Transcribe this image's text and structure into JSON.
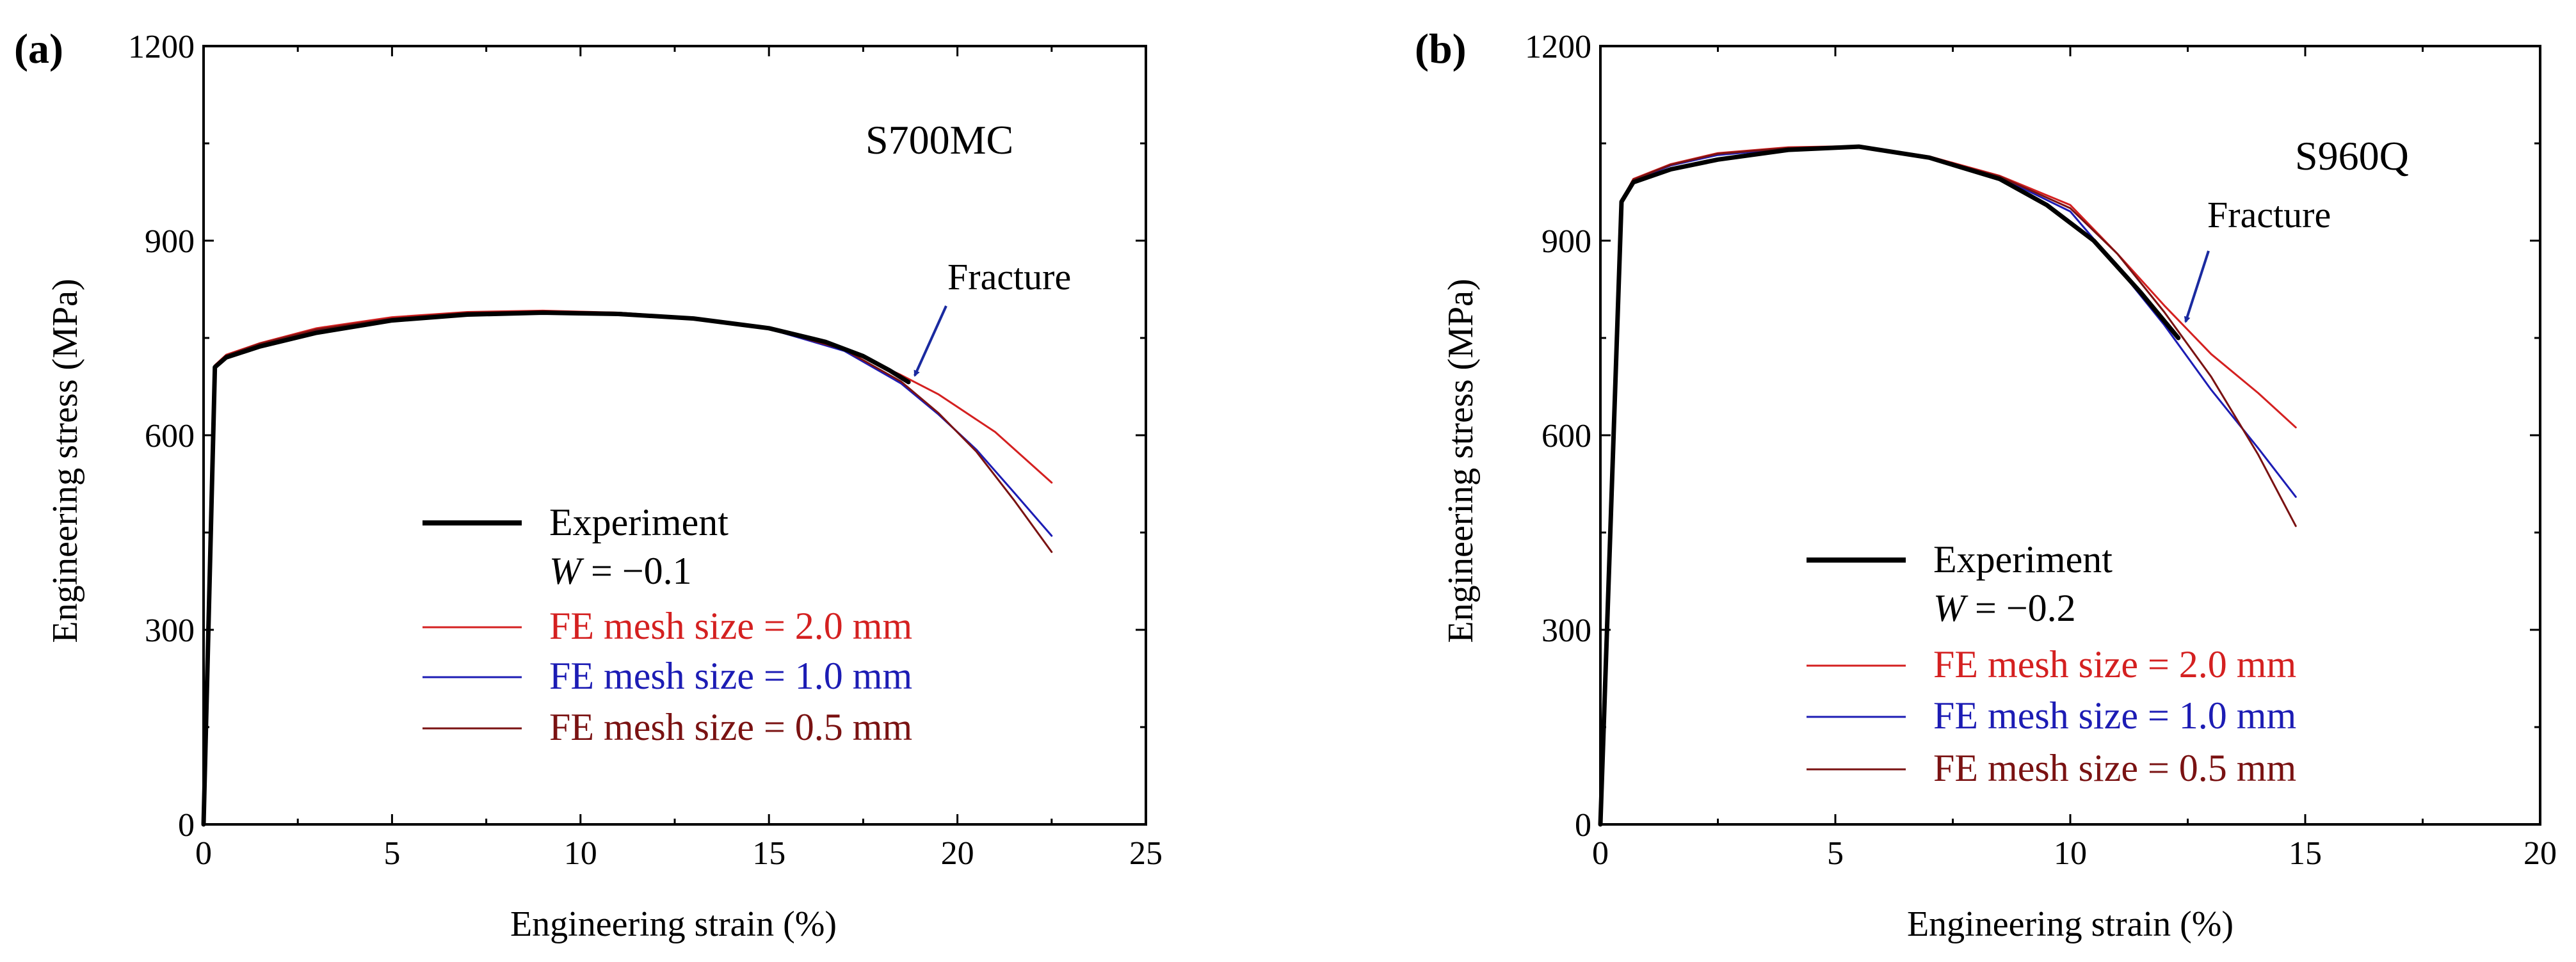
{
  "colors": {
    "experiment": "#000000",
    "fe_2_0": "#d42020",
    "fe_1_0": "#1c1cb4",
    "fe_0_5": "#7a1212",
    "arrow": "#1a2aa0",
    "axis": "#000000"
  },
  "chart_data": [
    {
      "type": "line",
      "panel_label": "(a)",
      "material": "S700MC",
      "xlabel": "Engineering strain (%)",
      "ylabel": "Engineering stress (MPa)",
      "xlim": [
        0,
        25
      ],
      "ylim": [
        0,
        1200
      ],
      "xticks": [
        "0",
        "5",
        "10",
        "15",
        "20",
        "25"
      ],
      "yticks": [
        "0",
        "300",
        "600",
        "900",
        "1200"
      ],
      "annotation": {
        "text": "Fracture",
        "points_to": [
          18.8,
          682
        ]
      },
      "legend": {
        "experiment": "Experiment",
        "w_symbol": "W",
        "w_value": "= −0.1",
        "fe_prefix": "FE",
        "mesh_2_0": "mesh size = 2.0 mm",
        "mesh_1_0": "mesh size = 1.0 mm",
        "mesh_0_5": "mesh size = 0.5 mm"
      },
      "series": [
        {
          "key": "experiment",
          "name": "Experiment",
          "color": "#000000",
          "width": 7,
          "points": [
            [
              0,
              0
            ],
            [
              0.3,
              705
            ],
            [
              0.6,
              720
            ],
            [
              1.5,
              737
            ],
            [
              3,
              758
            ],
            [
              5,
              777
            ],
            [
              7,
              786
            ],
            [
              9,
              789
            ],
            [
              11,
              787
            ],
            [
              13,
              780
            ],
            [
              15,
              765
            ],
            [
              16.5,
              744
            ],
            [
              17.5,
              722
            ],
            [
              18.2,
              700
            ],
            [
              18.7,
              682
            ]
          ]
        },
        {
          "key": "fe_2_0",
          "name": "FE mesh size = 2.0 mm",
          "color": "#d42020",
          "width": 3,
          "points": [
            [
              0,
              0
            ],
            [
              0.3,
              708
            ],
            [
              0.6,
              724
            ],
            [
              1.5,
              742
            ],
            [
              3,
              765
            ],
            [
              5,
              782
            ],
            [
              7,
              790
            ],
            [
              9,
              792
            ],
            [
              11,
              789
            ],
            [
              13,
              781
            ],
            [
              15,
              765
            ],
            [
              17,
              733
            ],
            [
              18.5,
              693
            ],
            [
              19.5,
              663
            ],
            [
              21,
              605
            ],
            [
              22.5,
              527
            ]
          ]
        },
        {
          "key": "fe_1_0",
          "name": "FE mesh size = 1.0 mm",
          "color": "#1c1cb4",
          "width": 3,
          "points": [
            [
              0,
              0
            ],
            [
              0.3,
              706
            ],
            [
              0.6,
              722
            ],
            [
              1.5,
              740
            ],
            [
              3,
              761
            ],
            [
              5,
              779
            ],
            [
              7,
              788
            ],
            [
              9,
              790
            ],
            [
              11,
              788
            ],
            [
              13,
              780
            ],
            [
              15,
              764
            ],
            [
              17,
              730
            ],
            [
              18.5,
              680
            ],
            [
              19.5,
              632
            ],
            [
              20.5,
              578
            ],
            [
              21.5,
              512
            ],
            [
              22.5,
              445
            ]
          ]
        },
        {
          "key": "fe_0_5",
          "name": "FE mesh size = 0.5 mm",
          "color": "#7a1212",
          "width": 3,
          "points": [
            [
              0,
              0
            ],
            [
              0.3,
              707
            ],
            [
              0.6,
              723
            ],
            [
              1.5,
              741
            ],
            [
              3,
              763
            ],
            [
              5,
              780
            ],
            [
              7,
              789
            ],
            [
              9,
              791
            ],
            [
              11,
              789
            ],
            [
              13,
              781
            ],
            [
              15,
              765
            ],
            [
              17,
              732
            ],
            [
              18.5,
              683
            ],
            [
              19.5,
              634
            ],
            [
              20.5,
              575
            ],
            [
              21.5,
              500
            ],
            [
              22.5,
              420
            ]
          ]
        }
      ]
    },
    {
      "type": "line",
      "panel_label": "(b)",
      "material": "S960Q",
      "xlabel": "Engineering strain (%)",
      "ylabel": "Engineering stress (MPa)",
      "xlim": [
        0,
        20
      ],
      "ylim": [
        0,
        1200
      ],
      "xticks": [
        "0",
        "5",
        "10",
        "15",
        "20"
      ],
      "yticks": [
        "0",
        "300",
        "600",
        "900",
        "1200"
      ],
      "annotation": {
        "text": "Fracture",
        "points_to": [
          12.4,
          765
        ]
      },
      "legend": {
        "experiment": "Experiment",
        "w_symbol": "W",
        "w_value": "= −0.2",
        "fe_prefix": "FE",
        "mesh_2_0": "mesh size = 2.0 mm",
        "mesh_1_0": "mesh size = 1.0 mm",
        "mesh_0_5": "mesh size = 0.5 mm"
      },
      "series": [
        {
          "key": "experiment",
          "name": "Experiment",
          "color": "#000000",
          "width": 7,
          "points": [
            [
              0,
              0
            ],
            [
              0.45,
              960
            ],
            [
              0.7,
              990
            ],
            [
              1.5,
              1010
            ],
            [
              2.5,
              1025
            ],
            [
              4,
              1040
            ],
            [
              5.5,
              1045
            ],
            [
              7,
              1028
            ],
            [
              8.5,
              995
            ],
            [
              9.5,
              955
            ],
            [
              10.5,
              900
            ],
            [
              11.5,
              820
            ],
            [
              12.3,
              750
            ]
          ]
        },
        {
          "key": "fe_2_0",
          "name": "FE mesh size = 2.0 mm",
          "color": "#d42020",
          "width": 3,
          "points": [
            [
              0,
              0
            ],
            [
              0.45,
              962
            ],
            [
              0.7,
              995
            ],
            [
              1.5,
              1018
            ],
            [
              2.5,
              1035
            ],
            [
              4,
              1044
            ],
            [
              5.5,
              1046
            ],
            [
              7,
              1030
            ],
            [
              8.5,
              1000
            ],
            [
              10,
              955
            ],
            [
              11,
              880
            ],
            [
              12,
              800
            ],
            [
              13,
              725
            ],
            [
              14,
              665
            ],
            [
              14.8,
              612
            ]
          ]
        },
        {
          "key": "fe_1_0",
          "name": "FE mesh size = 1.0 mm",
          "color": "#1c1cb4",
          "width": 3,
          "points": [
            [
              0,
              0
            ],
            [
              0.45,
              961
            ],
            [
              0.7,
              993
            ],
            [
              1.5,
              1016
            ],
            [
              2.5,
              1032
            ],
            [
              4,
              1042
            ],
            [
              5.5,
              1045
            ],
            [
              7,
              1029
            ],
            [
              8.5,
              998
            ],
            [
              10,
              945
            ],
            [
              11,
              860
            ],
            [
              12,
              770
            ],
            [
              13,
              670
            ],
            [
              14,
              580
            ],
            [
              14.8,
              505
            ]
          ]
        },
        {
          "key": "fe_0_5",
          "name": "FE mesh size = 0.5 mm",
          "color": "#7a1212",
          "width": 3,
          "points": [
            [
              0,
              0
            ],
            [
              0.45,
              962
            ],
            [
              0.7,
              994
            ],
            [
              1.5,
              1017
            ],
            [
              2.5,
              1034
            ],
            [
              4,
              1043
            ],
            [
              5.5,
              1046
            ],
            [
              7,
              1029
            ],
            [
              8.5,
              999
            ],
            [
              10,
              950
            ],
            [
              11,
              880
            ],
            [
              12,
              790
            ],
            [
              13,
              690
            ],
            [
              14,
              570
            ],
            [
              14.8,
              460
            ]
          ]
        }
      ]
    }
  ]
}
